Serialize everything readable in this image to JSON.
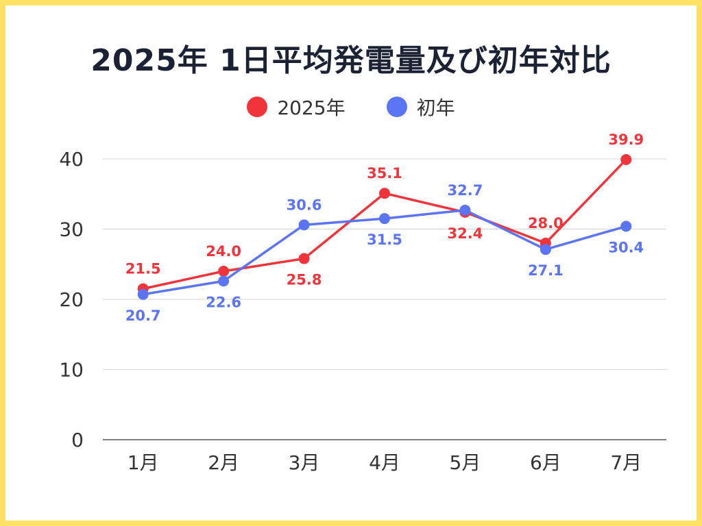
{
  "chart_data": {
    "type": "line",
    "title": "2025年 1日平均発電量及び初年対比",
    "categories": [
      "1月",
      "2月",
      "3月",
      "4月",
      "5月",
      "6月",
      "7月"
    ],
    "series": [
      {
        "name": "2025年",
        "color": "#f0343c",
        "values": [
          21.5,
          24.0,
          25.8,
          35.1,
          32.4,
          28.0,
          39.9
        ],
        "label_positions": [
          "above",
          "above",
          "below",
          "above",
          "below",
          "above",
          "above"
        ]
      },
      {
        "name": "初年",
        "color": "#5b73f5",
        "values": [
          20.7,
          22.6,
          30.6,
          31.5,
          32.7,
          27.1,
          30.4
        ],
        "label_positions": [
          "below",
          "below",
          "above",
          "below",
          "above",
          "below",
          "below"
        ]
      }
    ],
    "yticks": [
      0,
      10,
      20,
      30,
      40
    ],
    "ylim": [
      0,
      40
    ],
    "grid": true,
    "legend": "top-center",
    "xlabel": "",
    "ylabel": ""
  }
}
